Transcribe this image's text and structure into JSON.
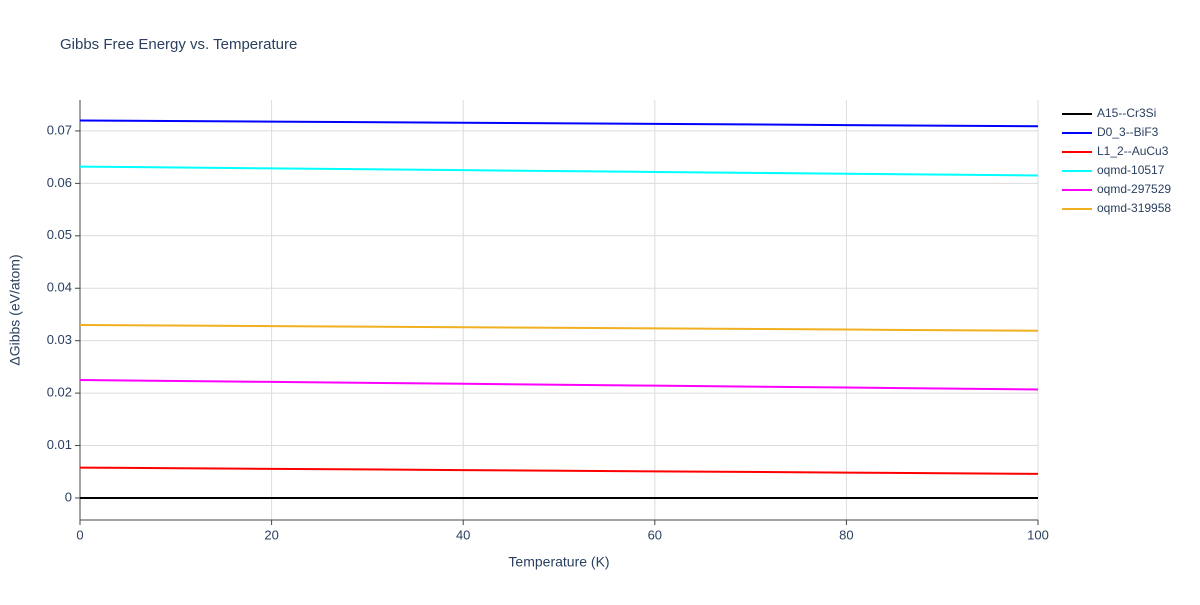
{
  "chart_data": {
    "type": "line",
    "title": "Gibbs Free Energy vs. Temperature",
    "x_label": "Temperature (K)",
    "y_label": "ΔGibbs (eV/atom)",
    "x": [
      0,
      20,
      40,
      60,
      80,
      100
    ],
    "series": [
      {
        "name": "A15--Cr3Si",
        "color": "#000000",
        "values": [
          0,
          0,
          0,
          0,
          0,
          0
        ]
      },
      {
        "name": "D0_3--BiF3",
        "color": "#0000ff",
        "values": [
          0.072,
          0.07178,
          0.07156,
          0.07134,
          0.07112,
          0.0709
        ]
      },
      {
        "name": "L1_2--AuCu3",
        "color": "#ff0000",
        "values": [
          0.0058,
          0.00556,
          0.00532,
          0.00508,
          0.00484,
          0.0046
        ]
      },
      {
        "name": "oqmd-10517",
        "color": "#00ffff",
        "values": [
          0.0632,
          0.06286,
          0.06252,
          0.06218,
          0.06184,
          0.0615
        ]
      },
      {
        "name": "oqmd-297529",
        "color": "#ff00ff",
        "values": [
          0.0225,
          0.02214,
          0.02178,
          0.02142,
          0.02106,
          0.0207
        ]
      },
      {
        "name": "oqmd-319958",
        "color": "#f0b020",
        "values": [
          0.033,
          0.03278,
          0.03256,
          0.03234,
          0.03212,
          0.0319
        ]
      }
    ],
    "xlim": [
      0,
      100
    ],
    "xticks": [
      0,
      20,
      40,
      60,
      80,
      100
    ],
    "ylim": [
      -0.0042,
      0.0759
    ],
    "yticks": [
      0,
      0.01,
      0.02,
      0.03,
      0.04,
      0.05,
      0.06,
      0.07
    ],
    "grid": true,
    "legend": "top-right"
  }
}
